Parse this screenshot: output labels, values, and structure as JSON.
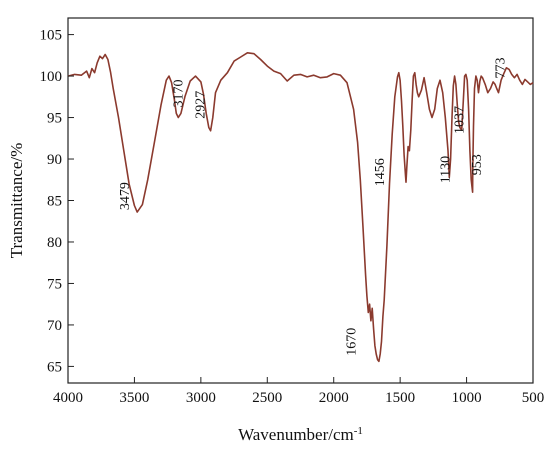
{
  "chart_data": {
    "type": "line",
    "title": "",
    "xlabel": "Wavenumber/cm",
    "xlabel_superscript": "-1",
    "ylabel": "Transmittance/%",
    "xlim": [
      4000,
      500
    ],
    "ylim": [
      63,
      107
    ],
    "x_reversed": true,
    "grid": false,
    "legend": "none",
    "xticks": [
      "4000",
      "3500",
      "3000",
      "2500",
      "2000",
      "1500",
      "1000",
      "500"
    ],
    "yticks": [
      "65",
      "70",
      "75",
      "80",
      "85",
      "90",
      "95",
      "100",
      "105"
    ],
    "series": [
      {
        "color": "#8b3a2e",
        "x": [
          4000,
          3950,
          3900,
          3860,
          3840,
          3820,
          3800,
          3780,
          3760,
          3740,
          3720,
          3700,
          3680,
          3660,
          3620,
          3580,
          3540,
          3500,
          3479,
          3440,
          3400,
          3350,
          3300,
          3260,
          3240,
          3220,
          3200,
          3185,
          3170,
          3150,
          3120,
          3080,
          3040,
          3000,
          2980,
          2960,
          2940,
          2927,
          2910,
          2890,
          2850,
          2800,
          2750,
          2700,
          2650,
          2600,
          2550,
          2500,
          2450,
          2400,
          2350,
          2300,
          2250,
          2200,
          2150,
          2100,
          2050,
          2000,
          1950,
          1900,
          1850,
          1820,
          1800,
          1780,
          1760,
          1750,
          1740,
          1730,
          1720,
          1710,
          1700,
          1690,
          1680,
          1670,
          1660,
          1650,
          1640,
          1630,
          1620,
          1600,
          1580,
          1560,
          1540,
          1520,
          1510,
          1500,
          1490,
          1480,
          1470,
          1460,
          1456,
          1450,
          1440,
          1430,
          1420,
          1410,
          1400,
          1390,
          1380,
          1370,
          1360,
          1340,
          1320,
          1300,
          1280,
          1260,
          1240,
          1220,
          1200,
          1180,
          1160,
          1140,
          1130,
          1120,
          1110,
          1100,
          1090,
          1080,
          1070,
          1060,
          1050,
          1037,
          1025,
          1015,
          1005,
          995,
          985,
          975,
          965,
          955,
          953,
          948,
          940,
          930,
          920,
          910,
          900,
          890,
          880,
          860,
          840,
          820,
          800,
          785,
          773,
          760,
          740,
          720,
          700,
          680,
          660,
          640,
          620,
          600,
          580,
          560,
          540,
          520,
          500
        ],
        "y": [
          100.0,
          100.2,
          100.1,
          100.6,
          99.8,
          100.9,
          100.4,
          101.6,
          102.4,
          102.1,
          102.6,
          102.0,
          100.5,
          98.5,
          95.0,
          91.0,
          87.0,
          84.4,
          83.6,
          84.5,
          87.5,
          92.0,
          96.5,
          99.5,
          100.0,
          99.2,
          97.2,
          95.5,
          95.0,
          95.5,
          97.5,
          99.4,
          100.0,
          99.3,
          97.8,
          95.5,
          93.8,
          93.4,
          95.0,
          98.0,
          99.5,
          100.4,
          101.8,
          102.3,
          102.8,
          102.7,
          102.0,
          101.2,
          100.6,
          100.3,
          99.4,
          100.1,
          100.2,
          99.9,
          100.1,
          99.8,
          99.9,
          100.3,
          100.1,
          99.2,
          96.0,
          92.0,
          87.5,
          82.0,
          76.0,
          73.5,
          71.5,
          72.5,
          70.5,
          72.0,
          69.5,
          67.5,
          66.5,
          65.8,
          65.6,
          66.5,
          68.0,
          71.0,
          73.0,
          79.5,
          87.0,
          93.0,
          97.5,
          99.9,
          100.4,
          99.5,
          97.0,
          94.0,
          90.5,
          88.0,
          87.2,
          89.0,
          91.5,
          91.0,
          93.5,
          97.0,
          100.0,
          100.4,
          99.0,
          98.0,
          97.5,
          98.3,
          99.8,
          98.0,
          96.0,
          95.0,
          96.0,
          98.5,
          99.5,
          98.0,
          95.0,
          91.0,
          87.8,
          90.0,
          95.0,
          98.8,
          100.0,
          99.0,
          96.5,
          94.5,
          93.8,
          93.5,
          97.0,
          100.0,
          100.2,
          99.5,
          96.0,
          91.0,
          87.5,
          86.0,
          89.0,
          94.0,
          98.5,
          100.0,
          99.5,
          98.0,
          99.4,
          100.0,
          99.8,
          99.0,
          98.0,
          98.5,
          99.3,
          99.0,
          98.5,
          98.0,
          99.5,
          100.3,
          101.0,
          100.8,
          100.2,
          99.8,
          100.2,
          99.5,
          99.0,
          99.6,
          99.3,
          99.0,
          99.2
        ]
      }
    ],
    "annotations": [
      "3479",
      "3170",
      "2927",
      "1670",
      "1456",
      "1130",
      "1037",
      "953",
      "773"
    ]
  }
}
